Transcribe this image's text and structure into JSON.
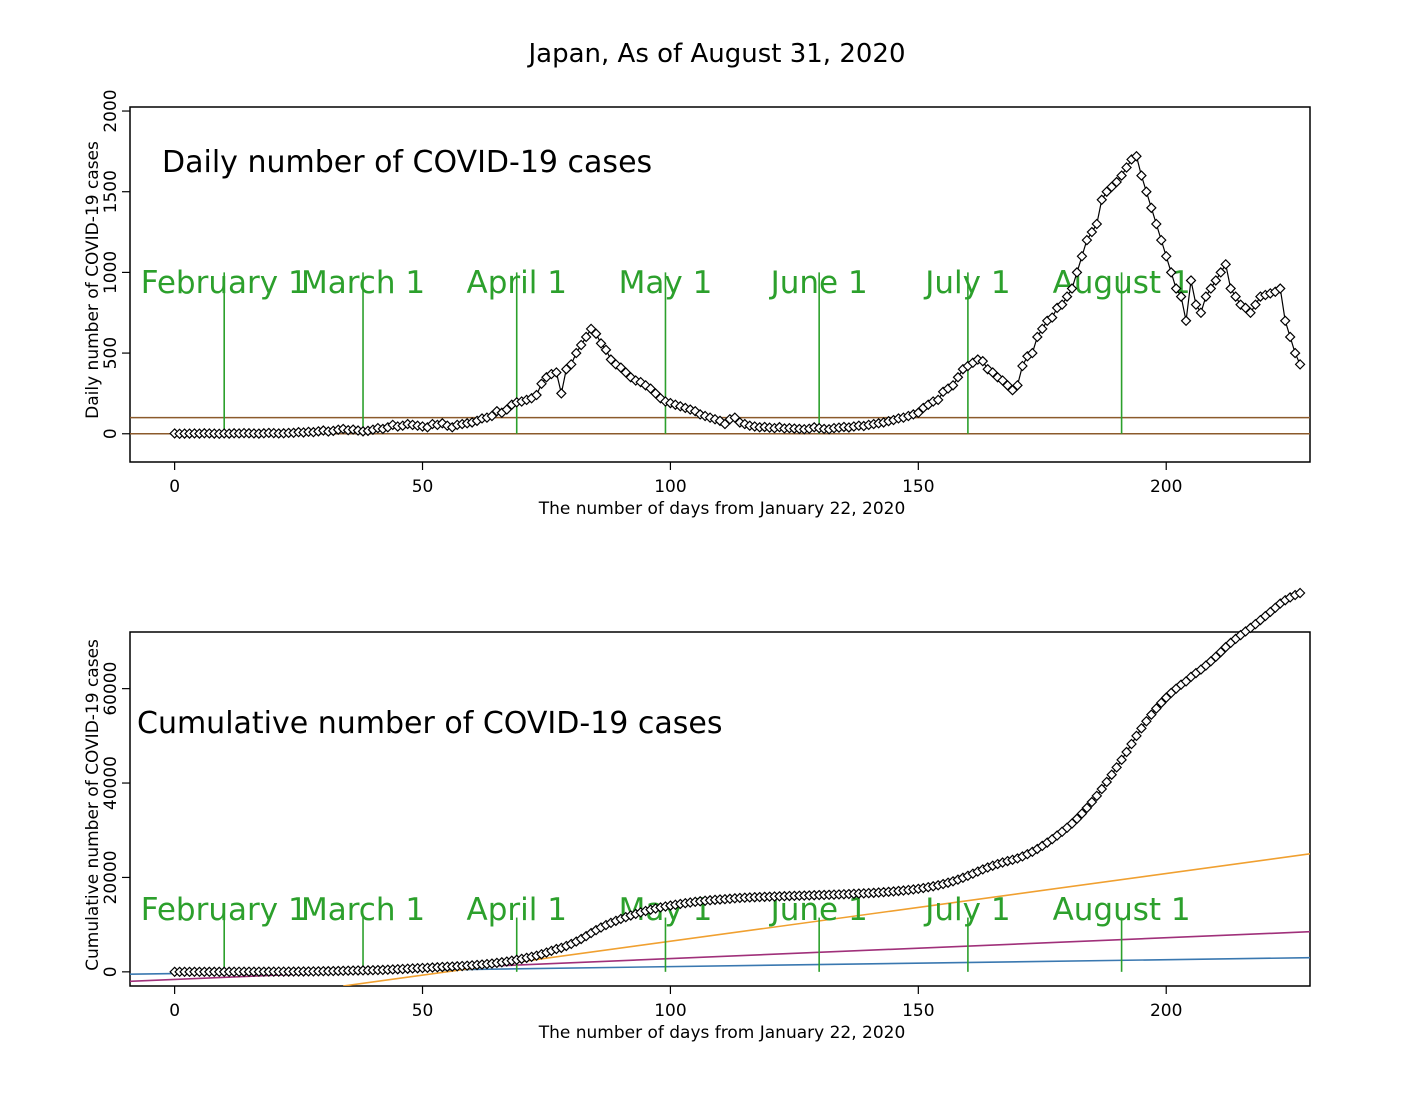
{
  "title": "Japan, As of August 31, 2020",
  "colors": {
    "month_lines": "#2ca02c",
    "reference_lines": "#8b5a2b",
    "orange_line": "#f0a030",
    "magenta_line": "#a0307a",
    "blue_line": "#3a78b0",
    "points": "#000000"
  },
  "chart_data": [
    {
      "type": "line",
      "panel_label": "Daily number of COVID-19 cases",
      "xlabel": "The number of days from January 22, 2020",
      "ylabel": "Daily number of COVID-19 cases",
      "xlim": [
        -9,
        229
      ],
      "ylim": [
        -175,
        2025
      ],
      "x_ticks": [
        0,
        50,
        100,
        150,
        200
      ],
      "x_tick_labels": [
        "0",
        "50",
        "100",
        "150",
        "200"
      ],
      "y_ticks": [
        0,
        500,
        1000,
        1500,
        2000
      ],
      "y_tick_labels": [
        "0",
        "500",
        "1000",
        "1500",
        "2000"
      ],
      "horizontal_lines": [
        0,
        100
      ],
      "month_markers": [
        {
          "label": "February 1",
          "x": 10
        },
        {
          "label": "March 1",
          "x": 38
        },
        {
          "label": "April 1",
          "x": 69
        },
        {
          "label": "May 1",
          "x": 99
        },
        {
          "label": "June 1",
          "x": 130
        },
        {
          "label": "July 1",
          "x": 160
        },
        {
          "label": "August 1",
          "x": 191
        }
      ],
      "month_marker_top": 1000,
      "series": [
        {
          "values": [
            2,
            0,
            1,
            1,
            2,
            1,
            3,
            2,
            1,
            0,
            2,
            1,
            3,
            2,
            4,
            3,
            2,
            1,
            3,
            5,
            4,
            2,
            3,
            5,
            6,
            10,
            8,
            12,
            10,
            15,
            20,
            14,
            18,
            25,
            30,
            22,
            26,
            20,
            15,
            18,
            25,
            35,
            30,
            40,
            55,
            45,
            50,
            60,
            55,
            50,
            45,
            40,
            60,
            55,
            65,
            50,
            40,
            55,
            60,
            65,
            70,
            80,
            95,
            100,
            110,
            140,
            130,
            150,
            180,
            195,
            200,
            210,
            220,
            240,
            310,
            350,
            370,
            380,
            250,
            400,
            430,
            500,
            550,
            600,
            650,
            620,
            560,
            520,
            460,
            430,
            410,
            380,
            350,
            330,
            320,
            300,
            280,
            250,
            220,
            200,
            190,
            180,
            170,
            160,
            150,
            140,
            120,
            110,
            100,
            90,
            80,
            60,
            90,
            100,
            70,
            60,
            50,
            45,
            40,
            42,
            38,
            35,
            41,
            33,
            35,
            32,
            30,
            28,
            31,
            40,
            35,
            30,
            28,
            35,
            38,
            42,
            39,
            45,
            50,
            48,
            55,
            60,
            65,
            70,
            78,
            85,
            95,
            100,
            110,
            120,
            130,
            160,
            180,
            200,
            210,
            260,
            280,
            300,
            350,
            400,
            420,
            440,
            460,
            450,
            400,
            380,
            350,
            330,
            300,
            270,
            300,
            420,
            480,
            500,
            600,
            650,
            700,
            720,
            780,
            800,
            850,
            900,
            1000,
            1100,
            1200,
            1250,
            1300,
            1450,
            1500,
            1530,
            1560,
            1600,
            1650,
            1700,
            1720,
            1600,
            1500,
            1400,
            1300,
            1200,
            1100,
            1000,
            900,
            850,
            700,
            950,
            800,
            750,
            850,
            900,
            950,
            1000,
            1050,
            900,
            850,
            800,
            780,
            750,
            800,
            850,
            860,
            870,
            880,
            900,
            700,
            600,
            500,
            430
          ],
          "note": ""
        }
      ]
    },
    {
      "type": "line",
      "panel_label": "Cumulative number of COVID-19 cases",
      "xlabel": "The number of days from January 22, 2020",
      "ylabel": "Cumulative number of COVID-19 cases",
      "xlim": [
        -9,
        229
      ],
      "ylim": [
        -3000,
        72000
      ],
      "x_ticks": [
        0,
        50,
        100,
        150,
        200
      ],
      "x_tick_labels": [
        "0",
        "50",
        "100",
        "150",
        "200"
      ],
      "y_ticks": [
        0,
        20000,
        40000,
        60000
      ],
      "y_tick_labels": [
        "0",
        "20000",
        "40000",
        "60000"
      ],
      "month_markers": [
        {
          "label": "February 1",
          "x": 10
        },
        {
          "label": "March 1",
          "x": 38
        },
        {
          "label": "April 1",
          "x": 69
        },
        {
          "label": "May 1",
          "x": 99
        },
        {
          "label": "June 1",
          "x": 130
        },
        {
          "label": "July 1",
          "x": 160
        },
        {
          "label": "August 1",
          "x": 191
        }
      ],
      "month_marker_top": 11500,
      "reference_lines": [
        {
          "color_key": "blue_line",
          "points": [
            [
              -9,
              -500
            ],
            [
              229,
              3000
            ]
          ]
        },
        {
          "color_key": "magenta_line",
          "points": [
            [
              -9,
              -2000
            ],
            [
              229,
              8500
            ]
          ]
        },
        {
          "color_key": "orange_line",
          "points": [
            [
              34,
              -3000
            ],
            [
              229,
              25000
            ]
          ]
        }
      ]
    }
  ]
}
